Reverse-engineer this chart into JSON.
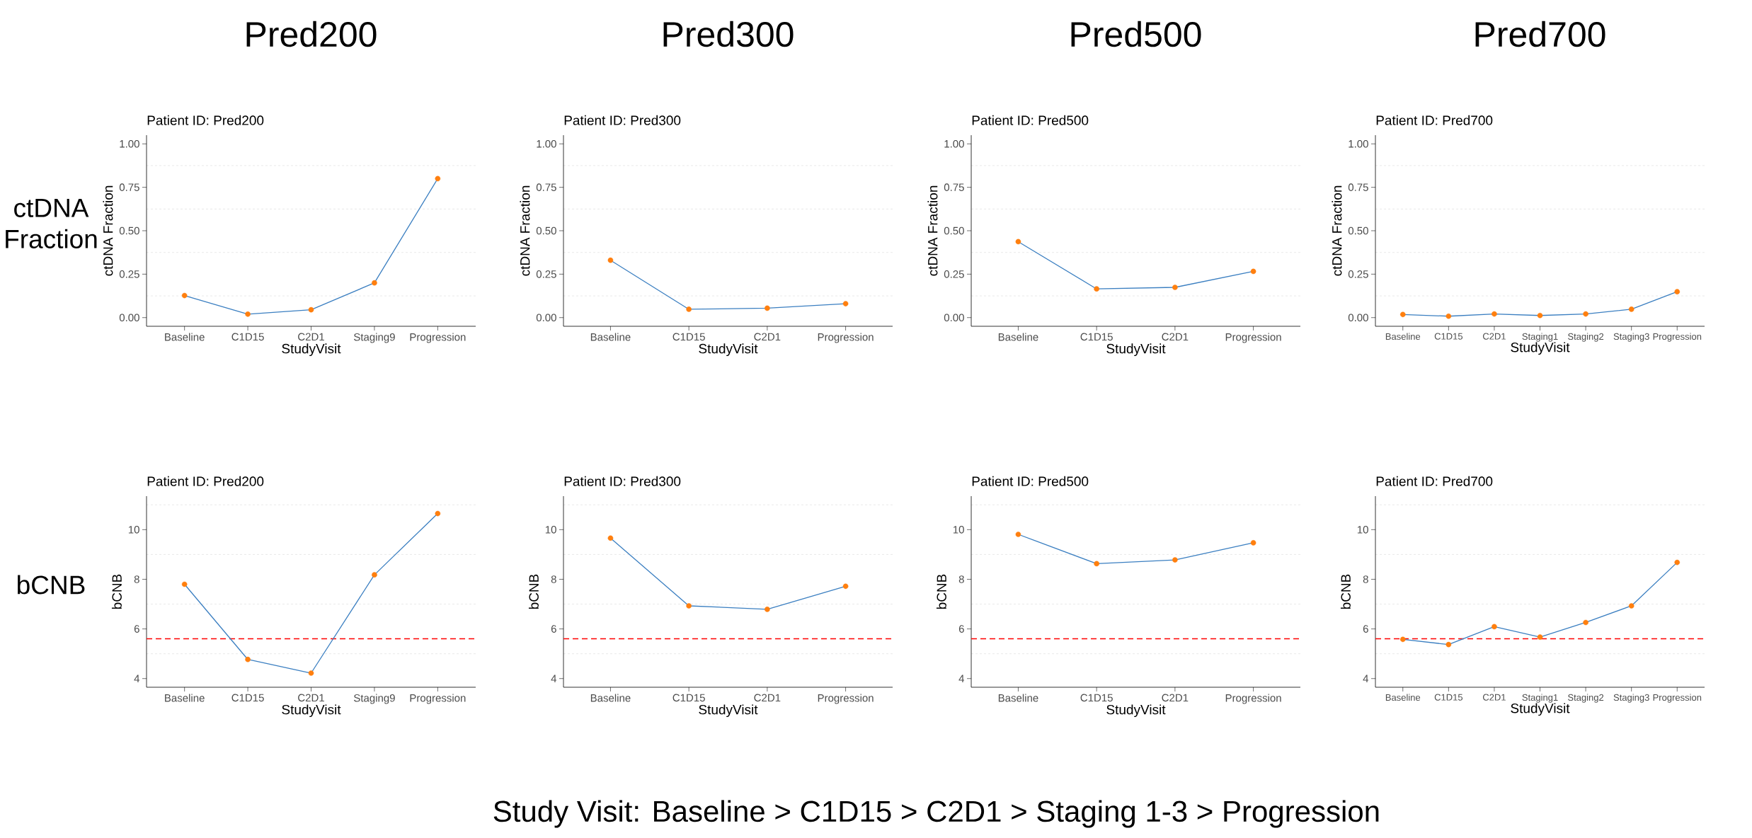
{
  "chart_data": [
    {
      "type": "line",
      "title": "Pred200",
      "subtitle": "Patient ID: Pred200",
      "xlabel": "StudyVisit",
      "ylabel": "ctDNA Fraction",
      "annotations": [
        "ctDNA Fraction"
      ],
      "categories": [
        "Baseline",
        "C1D15",
        "C2D1",
        "Staging9",
        "Progression"
      ],
      "series": [
        {
          "color": "#3b7fc1",
          "colors": [
            "#ff7f0e",
            "#ff7f0e",
            "#ff7f0e",
            "#ff7f0e",
            "#ff7f0e"
          ],
          "values": [
            0.127,
            0.02,
            0.045,
            0.2,
            0.8
          ]
        }
      ],
      "ylim": [
        -0.05,
        1.05
      ],
      "yticks": [
        {
          "value": 0,
          "label": "0.00"
        },
        {
          "value": 0.25,
          "label": "0.25"
        },
        {
          "value": 0.5,
          "label": "0.50"
        },
        {
          "value": 0.75,
          "label": "0.75"
        },
        {
          "value": 1,
          "label": "1.00"
        }
      ],
      "grid": "y",
      "marker": "circle",
      "line_style": "solid"
    },
    {
      "type": "line",
      "title": "Pred300",
      "subtitle": "Patient ID: Pred300",
      "xlabel": "StudyVisit",
      "ylabel": "ctDNA Fraction",
      "categories": [
        "Baseline",
        "C1D15",
        "C2D1",
        "Progression"
      ],
      "series": [
        {
          "color": "#3b7fc1",
          "colors": [
            "#ff7f0e",
            "#ff7f0e",
            "#ff7f0e",
            "#ff7f0e"
          ],
          "values": [
            0.33,
            0.048,
            0.054,
            0.08
          ]
        }
      ],
      "ylim": [
        -0.05,
        1.05
      ],
      "yticks": [
        {
          "value": 0,
          "label": "0.00"
        },
        {
          "value": 0.25,
          "label": "0.25"
        },
        {
          "value": 0.5,
          "label": "0.50"
        },
        {
          "value": 0.75,
          "label": "0.75"
        },
        {
          "value": 1,
          "label": "1.00"
        }
      ],
      "grid": "y",
      "marker": "circle",
      "line_style": "solid"
    },
    {
      "type": "line",
      "title": "Pred500",
      "subtitle": "Patient ID: Pred500",
      "xlabel": "StudyVisit",
      "ylabel": "ctDNA Fraction",
      "categories": [
        "Baseline",
        "C1D15",
        "C2D1",
        "Progression"
      ],
      "series": [
        {
          "color": "#3b7fc1",
          "colors": [
            "#ff7f0e",
            "#ff7f0e",
            "#ff7f0e",
            "#ff7f0e"
          ],
          "values": [
            0.437,
            0.165,
            0.174,
            0.266
          ]
        }
      ],
      "ylim": [
        -0.05,
        1.05
      ],
      "yticks": [
        {
          "value": 0,
          "label": "0.00"
        },
        {
          "value": 0.25,
          "label": "0.25"
        },
        {
          "value": 0.5,
          "label": "0.50"
        },
        {
          "value": 0.75,
          "label": "0.75"
        },
        {
          "value": 1,
          "label": "1.00"
        }
      ],
      "grid": "y",
      "marker": "circle",
      "line_style": "solid"
    },
    {
      "type": "line",
      "title": "Pred700",
      "subtitle": "Patient ID: Pred700",
      "xlabel": "StudyVisit",
      "ylabel": "ctDNA Fraction",
      "categories": [
        "Baseline",
        "C1D15",
        "C2D1",
        "Staging1",
        "Staging2",
        "Staging3",
        "Progression"
      ],
      "series": [
        {
          "color": "#3b7fc1",
          "colors": [
            "#ff7f0e",
            "#ff7f0e",
            "#ff7f0e",
            "#ff7f0e",
            "#ff7f0e",
            "#ff7f0e",
            "#ff7f0e"
          ],
          "values": [
            0.018,
            0.008,
            0.021,
            0.012,
            0.021,
            0.048,
            0.149
          ]
        }
      ],
      "ylim": [
        -0.05,
        1.05
      ],
      "yticks": [
        {
          "value": 0,
          "label": "0.00"
        },
        {
          "value": 0.25,
          "label": "0.25"
        },
        {
          "value": 0.5,
          "label": "0.50"
        },
        {
          "value": 0.75,
          "label": "0.75"
        },
        {
          "value": 1,
          "label": "1.00"
        }
      ],
      "grid": "y",
      "marker": "circle",
      "line_style": "solid"
    },
    {
      "type": "line",
      "subtitle": "Patient ID: Pred200",
      "xlabel": "StudyVisit",
      "ylabel": "bCNB",
      "annotations": [
        "bCNB",
        "Study Visit: Baseline > C1D15 > C2D1 > Staging 1-3 > Progression"
      ],
      "categories": [
        "Baseline",
        "C1D15",
        "C2D1",
        "Staging9",
        "Progression"
      ],
      "series": [
        {
          "color": "#3b7fc1",
          "colors": [
            "#ff7f0e",
            "#ff7f0e",
            "#ff7f0e",
            "#ff7f0e",
            "#ff7f0e"
          ],
          "values": [
            7.8,
            4.77,
            4.22,
            8.18,
            10.65
          ]
        }
      ],
      "ylim": [
        3.65,
        11.35
      ],
      "yticks": [
        4,
        6,
        8,
        10
      ],
      "grid": "y",
      "marker": "circle",
      "line_style": "solid",
      "ref_lines": [
        {
          "axis": "y",
          "value": 5.6,
          "color": "#ff0000",
          "line_style": "dashed"
        }
      ]
    },
    {
      "type": "line",
      "subtitle": "Patient ID: Pred300",
      "xlabel": "StudyVisit",
      "ylabel": "bCNB",
      "categories": [
        "Baseline",
        "C1D15",
        "C2D1",
        "Progression"
      ],
      "series": [
        {
          "color": "#3b7fc1",
          "colors": [
            "#ff7f0e",
            "#ff7f0e",
            "#ff7f0e",
            "#ff7f0e"
          ],
          "values": [
            9.66,
            6.93,
            6.79,
            7.72
          ]
        }
      ],
      "ylim": [
        3.65,
        11.35
      ],
      "yticks": [
        4,
        6,
        8,
        10
      ],
      "grid": "y",
      "marker": "circle",
      "line_style": "solid",
      "ref_lines": [
        {
          "axis": "y",
          "value": 5.6,
          "color": "#ff0000",
          "line_style": "dashed"
        }
      ]
    },
    {
      "type": "line",
      "subtitle": "Patient ID: Pred500",
      "xlabel": "StudyVisit",
      "ylabel": "bCNB",
      "categories": [
        "Baseline",
        "C1D15",
        "C2D1",
        "Progression"
      ],
      "series": [
        {
          "color": "#3b7fc1",
          "colors": [
            "#ff7f0e",
            "#ff7f0e",
            "#ff7f0e",
            "#ff7f0e"
          ],
          "values": [
            9.81,
            8.63,
            8.78,
            9.47
          ]
        }
      ],
      "ylim": [
        3.65,
        11.35
      ],
      "yticks": [
        4,
        6,
        8,
        10
      ],
      "grid": "y",
      "marker": "circle",
      "line_style": "solid",
      "ref_lines": [
        {
          "axis": "y",
          "value": 5.6,
          "color": "#ff0000",
          "line_style": "dashed"
        }
      ]
    },
    {
      "type": "line",
      "subtitle": "Patient ID: Pred700",
      "xlabel": "StudyVisit",
      "ylabel": "bCNB",
      "categories": [
        "Baseline",
        "C1D15",
        "C2D1",
        "Staging1",
        "Staging2",
        "Staging3",
        "Progression"
      ],
      "series": [
        {
          "color": "#3b7fc1",
          "colors": [
            "#ff7f0e",
            "#ff7f0e",
            "#ff7f0e",
            "#ff7f0e",
            "#ff7f0e",
            "#ff7f0e",
            "#ff7f0e"
          ],
          "values": [
            5.58,
            5.37,
            6.09,
            5.67,
            6.26,
            6.93,
            8.68
          ]
        }
      ],
      "ylim": [
        3.65,
        11.35
      ],
      "yticks": [
        4,
        6,
        8,
        10
      ],
      "grid": "y",
      "marker": "circle",
      "line_style": "solid",
      "ref_lines": [
        {
          "axis": "y",
          "value": 5.6,
          "color": "#ff0000",
          "line_style": "dashed"
        }
      ]
    }
  ]
}
